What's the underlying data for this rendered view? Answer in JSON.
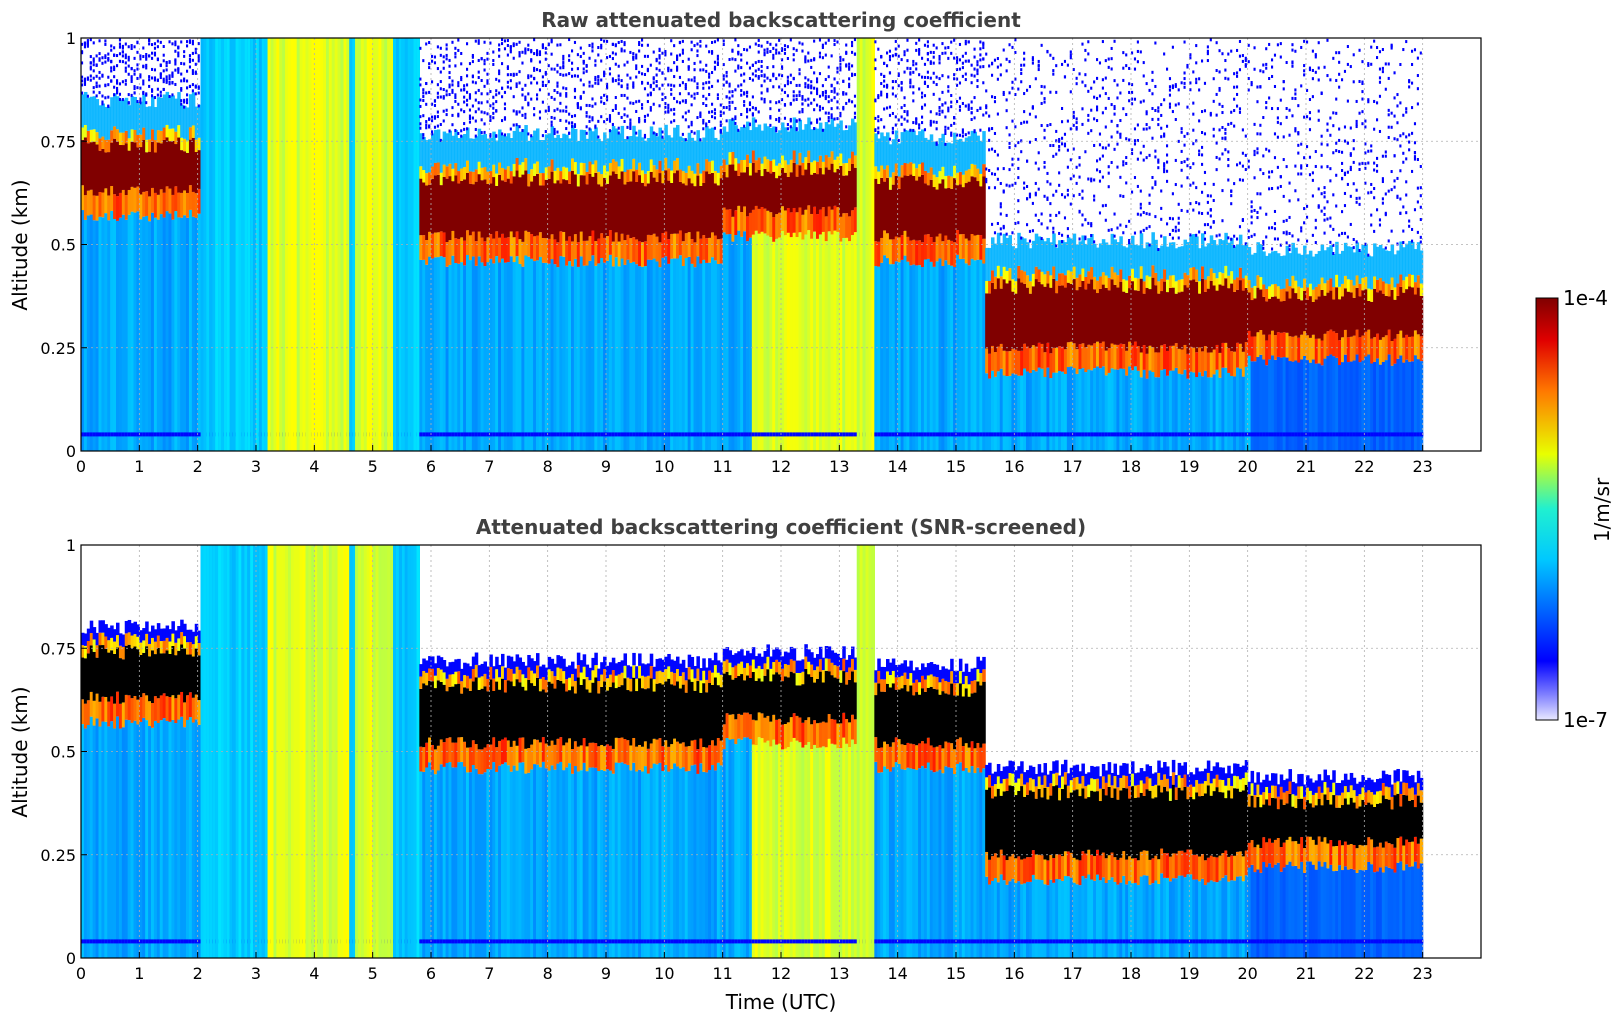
{
  "chart_data": [
    {
      "type": "heatmap",
      "title": "Raw attenuated backscattering coefficient",
      "xlabel": "",
      "ylabel": "Altitude (km)",
      "xlim": [
        0,
        24
      ],
      "ylim": [
        0,
        1
      ],
      "xticks": [
        0,
        1,
        2,
        3,
        4,
        5,
        6,
        7,
        8,
        9,
        10,
        11,
        12,
        13,
        14,
        15,
        16,
        17,
        18,
        19,
        20,
        21,
        22,
        23
      ],
      "yticks": [
        "0",
        "0.25",
        "0.5",
        "0.75",
        "1"
      ],
      "grid": true,
      "data_end_hour": 23,
      "cloud_layer": {
        "segments": [
          {
            "t": [
              0,
              2.05
            ],
            "top_km": 0.74,
            "base_km": 0.63
          },
          {
            "t": [
              5.8,
              11.0
            ],
            "top_km": 0.66,
            "base_km": 0.52
          },
          {
            "t": [
              11.0,
              13.3
            ],
            "top_km": 0.68,
            "base_km": 0.58
          },
          {
            "t": [
              13.6,
              15.5
            ],
            "top_km": 0.65,
            "base_km": 0.52
          },
          {
            "t": [
              15.5,
              20.0
            ],
            "top_km": 0.4,
            "base_km": 0.25
          },
          {
            "t": [
              20.0,
              23.0
            ],
            "top_km": 0.38,
            "base_km": 0.28
          }
        ]
      },
      "precipitation_bands_hours": [
        [
          3.2,
          4.6
        ],
        [
          4.7,
          5.35
        ],
        [
          11.5,
          13.6
        ]
      ],
      "noise_region": "above cloud top (blue speckle)"
    },
    {
      "type": "heatmap",
      "title": "Attenuated backscattering coefficient (SNR-screened)",
      "xlabel": "Time (UTC)",
      "ylabel": "Altitude (km)",
      "xlim": [
        0,
        24
      ],
      "ylim": [
        0,
        1
      ],
      "xticks": [
        0,
        1,
        2,
        3,
        4,
        5,
        6,
        7,
        8,
        9,
        10,
        11,
        12,
        13,
        14,
        15,
        16,
        17,
        18,
        19,
        20,
        21,
        22,
        23
      ],
      "yticks": [
        "0",
        "0.25",
        "0.5",
        "0.75",
        "1"
      ],
      "grid": true,
      "data_end_hour": 23,
      "screened_above_cloud": true
    }
  ],
  "colorbar": {
    "label": "1/m/sr",
    "max_label": "1e-4",
    "min_label": "1e-7",
    "scale": "log",
    "colormap": "jet",
    "over_color": "#000000"
  }
}
